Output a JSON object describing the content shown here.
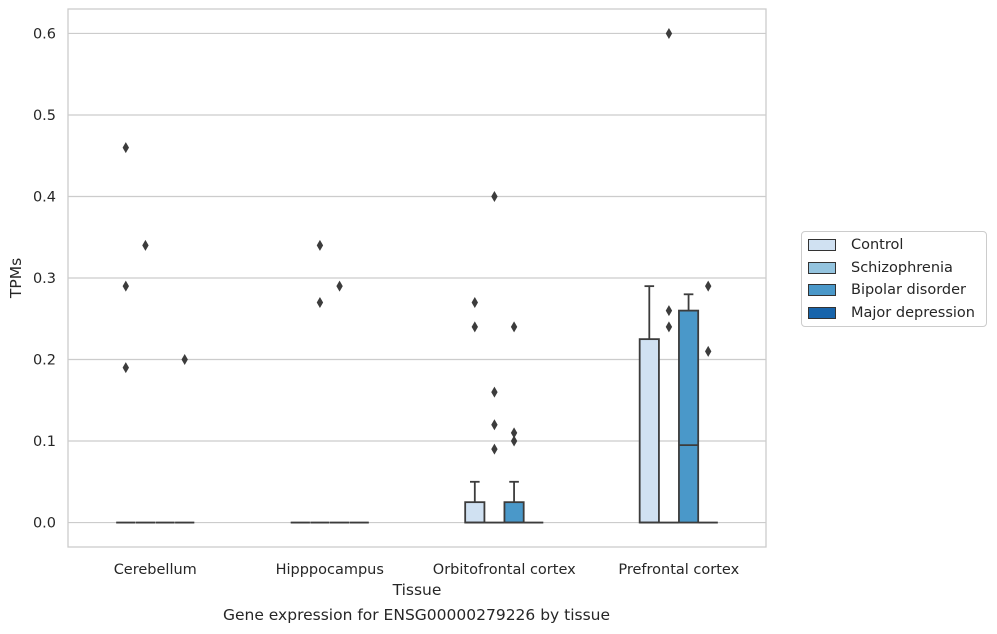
{
  "chart_data": {
    "type": "box",
    "caption": "Gene expression for ENSG00000279226 by tissue",
    "xlabel": "Tissue",
    "ylabel": "TPMs",
    "ylim": [
      -0.03,
      0.63
    ],
    "yticks": [
      0.0,
      0.1,
      0.2,
      0.3,
      0.4,
      0.5,
      0.6
    ],
    "ytick_labels": [
      "0.0",
      "0.1",
      "0.2",
      "0.3",
      "0.4",
      "0.5",
      "0.6"
    ],
    "grid": true,
    "legend_position": "right",
    "categories": [
      "Cerebellum",
      "Hipppocampus",
      "Orbitofrontal cortex",
      "Prefrontal cortex"
    ],
    "series": [
      {
        "name": "Control",
        "color": "#d0e1f2",
        "boxes": [
          {
            "q1": 0,
            "median": 0,
            "q3": 0,
            "whislo": 0,
            "whishi": 0,
            "fliers": [
              0.19,
              0.29,
              0.46
            ]
          },
          {
            "q1": 0,
            "median": 0,
            "q3": 0,
            "whislo": 0,
            "whishi": 0,
            "fliers": []
          },
          {
            "q1": 0,
            "median": 0,
            "q3": 0.025,
            "whislo": 0,
            "whishi": 0.05,
            "fliers": [
              0.24,
              0.27
            ]
          },
          {
            "q1": 0,
            "median": 0,
            "q3": 0.225,
            "whislo": 0,
            "whishi": 0.29,
            "fliers": []
          }
        ]
      },
      {
        "name": "Schizophrenia",
        "color": "#94c4df",
        "boxes": [
          {
            "q1": 0,
            "median": 0,
            "q3": 0,
            "whislo": 0,
            "whishi": 0,
            "fliers": [
              0.34
            ]
          },
          {
            "q1": 0,
            "median": 0,
            "q3": 0,
            "whislo": 0,
            "whishi": 0,
            "fliers": [
              0.27,
              0.34
            ]
          },
          {
            "q1": 0,
            "median": 0,
            "q3": 0,
            "whislo": 0,
            "whishi": 0,
            "fliers": [
              0.09,
              0.12,
              0.16,
              0.4
            ]
          },
          {
            "q1": 0,
            "median": 0,
            "q3": 0,
            "whislo": 0,
            "whishi": 0,
            "fliers": [
              0.24,
              0.26,
              0.6
            ]
          }
        ]
      },
      {
        "name": "Bipolar disorder",
        "color": "#4a98c9",
        "boxes": [
          {
            "q1": 0,
            "median": 0,
            "q3": 0,
            "whislo": 0,
            "whishi": 0,
            "fliers": []
          },
          {
            "q1": 0,
            "median": 0,
            "q3": 0,
            "whislo": 0,
            "whishi": 0,
            "fliers": [
              0.29
            ]
          },
          {
            "q1": 0,
            "median": 0,
            "q3": 0.025,
            "whislo": 0,
            "whishi": 0.05,
            "fliers": [
              0.1,
              0.11,
              0.24
            ]
          },
          {
            "q1": 0,
            "median": 0.095,
            "q3": 0.26,
            "whislo": 0,
            "whishi": 0.28,
            "fliers": []
          }
        ]
      },
      {
        "name": "Major depression",
        "color": "#1764ab",
        "boxes": [
          {
            "q1": 0,
            "median": 0,
            "q3": 0,
            "whislo": 0,
            "whishi": 0,
            "fliers": [
              0.2
            ]
          },
          {
            "q1": 0,
            "median": 0,
            "q3": 0,
            "whislo": 0,
            "whishi": 0,
            "fliers": []
          },
          {
            "q1": 0,
            "median": 0,
            "q3": 0,
            "whislo": 0,
            "whishi": 0,
            "fliers": []
          },
          {
            "q1": 0,
            "median": 0,
            "q3": 0,
            "whislo": 0,
            "whishi": 0,
            "fliers": [
              0.21,
              0.29
            ]
          }
        ]
      }
    ]
  }
}
